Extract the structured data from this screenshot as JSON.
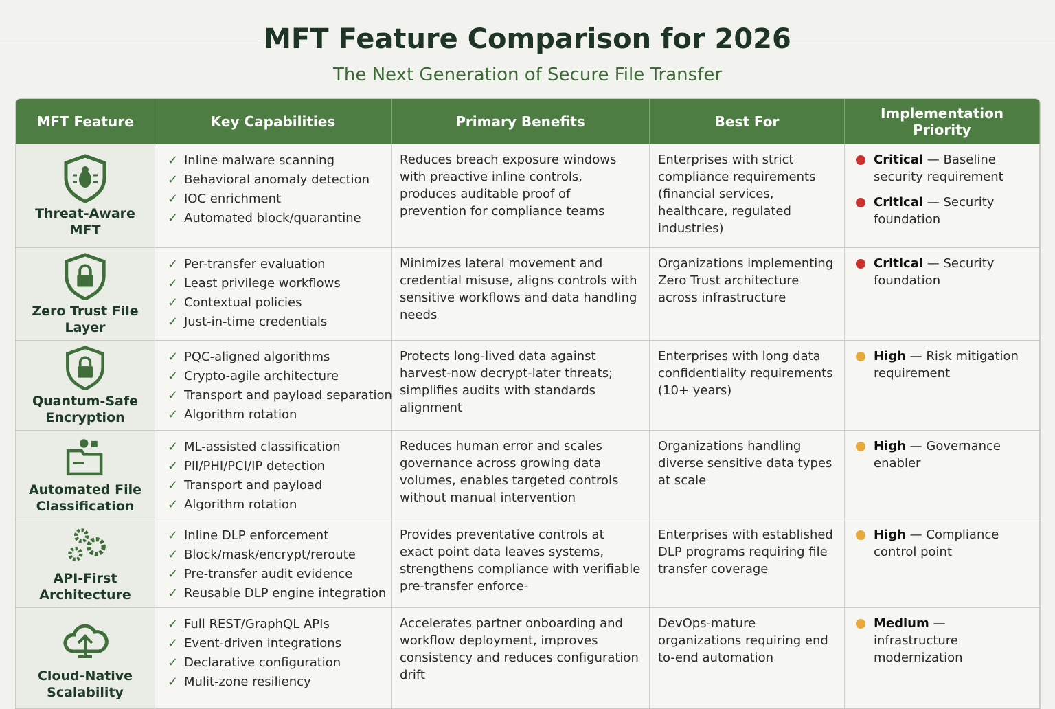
{
  "header": {
    "title": "MFT Feature Comparison for 2026",
    "subtitle": "The Next Generation of Secure File Transfer"
  },
  "table": {
    "columns": [
      "MFT Feature",
      "Key Capabilities",
      "Primary Benefits",
      "Best For",
      "Implementation Priority"
    ],
    "rows": [
      {
        "feature": "Threat-Aware MFT",
        "icon": "shield-bug",
        "capabilities": [
          "Inline malware scanning",
          "Behavioral anomaly detection",
          "IOC enrichment",
          "Automated block/quarantine"
        ],
        "benefits": "Reduces breach exposure windows with preactive inline controls, produces auditable proof of prevention for compliance teams",
        "best_for": "Enterprises with strict compliance requirements (financial services, healthcare, regulated industries)",
        "priorities": [
          {
            "level": "Critical",
            "detail": "— Baseline security requirement",
            "color": "#c8322f"
          },
          {
            "level": "Critical",
            "detail": "— Security foundation",
            "color": "#c8322f"
          }
        ]
      },
      {
        "feature": "Zero Trust File Layer",
        "icon": "shield-lock",
        "capabilities": [
          "Per-transfer evaluation",
          "Least privilege workflows",
          "Contextual policies",
          "Just-in-time credentials"
        ],
        "benefits": "Minimizes lateral movement and credential misuse, aligns controls with sensitive workflows and data handling needs",
        "best_for": "Organizations implementing Zero Trust architecture across infrastructure",
        "priorities": [
          {
            "level": "Critical",
            "detail": "— Security foundation",
            "color": "#c8322f"
          }
        ]
      },
      {
        "feature": "Quantum-Safe Encryption",
        "icon": "shield-lock",
        "capabilities": [
          "PQC-aligned algorithms",
          "Crypto-agile architecture",
          "Transport and payload separation",
          "Algorithm rotation"
        ],
        "benefits": "Protects long-lived data against harvest-now decrypt-later threats; simplifies audits with standards alignment",
        "best_for": "Enterprises with long data confidentiality requirements (10+ years)",
        "priorities": [
          {
            "level": "High",
            "detail": "— Risk mitigation requirement",
            "color": "#e7a93c"
          }
        ]
      },
      {
        "feature": "Automated File Classification",
        "icon": "folder",
        "capabilities": [
          "ML-assisted classification",
          "PII/PHI/PCI/IP detection",
          "Transport and payload",
          "Algorithm rotation"
        ],
        "benefits": "Reduces human error and scales governance across growing data volumes, enables targeted controls without manual intervention",
        "best_for": "Organizations handling diverse sensitive data types at scale",
        "priorities": [
          {
            "level": "High",
            "detail": "— Governance enabler",
            "color": "#e7a93c"
          }
        ]
      },
      {
        "feature": "API-First Architecture",
        "icon": "gears",
        "capabilities": [
          "Inline DLP enforcement",
          "Block/mask/encrypt/reroute",
          "Pre-transfer audit evidence",
          "Reusable DLP engine integration"
        ],
        "benefits": "Provides preventative controls at exact point data leaves systems, strengthens compliance with verifiable pre-transfer enforce-",
        "best_for": "Enterprises with established DLP programs requiring file transfer coverage",
        "priorities": [
          {
            "level": "High",
            "detail": "— Compliance control point",
            "color": "#e7a93c"
          }
        ]
      },
      {
        "feature": "Cloud-Native Scalability",
        "icon": "cloud",
        "capabilities": [
          "Full REST/GraphQL APIs",
          "Event-driven integrations",
          "Declarative configuration",
          "Mulit-zone resiliency"
        ],
        "benefits": "Accelerates partner onboarding and workflow deployment, improves consistency and reduces configuration drift",
        "best_for": "DevOps-mature organizations requiring end to-end automation",
        "priorities": [
          {
            "level": "Medium",
            "detail": "— infrastructure modernization",
            "color": "#e7a93c"
          }
        ]
      }
    ]
  }
}
